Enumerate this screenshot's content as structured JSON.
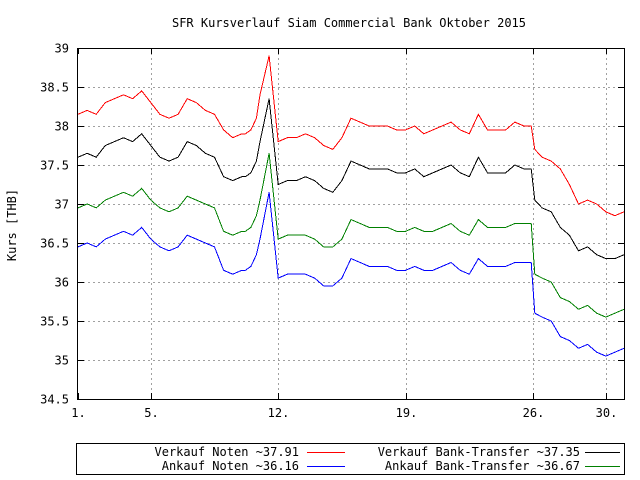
{
  "chart_data": {
    "type": "line",
    "title": "SFR Kursverlauf Siam Commercial Bank Oktober 2015",
    "xlabel": "",
    "ylabel": "Kurs [THB]",
    "xlim": [
      1,
      31
    ],
    "ylim": [
      34.5,
      39
    ],
    "grid": true,
    "legend_position": "bottom",
    "x_ticks": [
      {
        "x": 1,
        "label": "1."
      },
      {
        "x": 5,
        "label": "5."
      },
      {
        "x": 12,
        "label": "12."
      },
      {
        "x": 19,
        "label": "19."
      },
      {
        "x": 26,
        "label": "26."
      },
      {
        "x": 30,
        "label": "30."
      }
    ],
    "y_ticks": [
      {
        "y": 34.5,
        "label": "34.5"
      },
      {
        "y": 35,
        "label": "35"
      },
      {
        "y": 35.5,
        "label": "35.5"
      },
      {
        "y": 36,
        "label": "36"
      },
      {
        "y": 36.5,
        "label": "36.5"
      },
      {
        "y": 37,
        "label": "37"
      },
      {
        "y": 37.5,
        "label": "37.5"
      },
      {
        "y": 38,
        "label": "38"
      },
      {
        "y": 38.5,
        "label": "38.5"
      },
      {
        "y": 39,
        "label": "39"
      }
    ],
    "series": [
      {
        "name": "Verkauf Noten ~37.91",
        "color": "#ff0000",
        "x": [
          1.0,
          1.5,
          2.0,
          2.5,
          3.0,
          3.5,
          4.0,
          4.5,
          5.0,
          5.5,
          6.0,
          6.5,
          7.0,
          7.5,
          8.0,
          8.5,
          9.0,
          9.5,
          10.0,
          10.2,
          10.5,
          10.8,
          11.0,
          11.5,
          12.0,
          12.5,
          13.0,
          13.5,
          14.0,
          14.5,
          15.0,
          15.5,
          16.0,
          16.5,
          17.0,
          17.5,
          18.0,
          18.5,
          19.0,
          19.5,
          20.0,
          20.5,
          21.0,
          21.5,
          22.0,
          22.5,
          23.0,
          23.5,
          24.0,
          24.5,
          25.0,
          25.5,
          25.9,
          26.1,
          26.5,
          27.0,
          27.5,
          28.0,
          28.5,
          29.0,
          29.5,
          30.0,
          30.5,
          31.0
        ],
        "y": [
          38.15,
          38.2,
          38.15,
          38.3,
          38.35,
          38.4,
          38.35,
          38.45,
          38.3,
          38.15,
          38.1,
          38.15,
          38.35,
          38.3,
          38.2,
          38.15,
          37.95,
          37.85,
          37.9,
          37.9,
          37.95,
          38.1,
          38.4,
          38.9,
          37.8,
          37.85,
          37.85,
          37.9,
          37.85,
          37.75,
          37.7,
          37.85,
          38.1,
          38.05,
          38.0,
          38.0,
          38.0,
          37.95,
          37.95,
          38.0,
          37.9,
          37.95,
          38.0,
          38.05,
          37.95,
          37.9,
          38.15,
          37.95,
          37.95,
          37.95,
          38.05,
          38.0,
          38.0,
          37.7,
          37.6,
          37.55,
          37.45,
          37.25,
          37.0,
          37.05,
          37.0,
          36.9,
          36.85,
          36.9
        ]
      },
      {
        "name": "Verkauf Bank-Transfer ~37.35",
        "color": "#000000",
        "x": [
          1.0,
          1.5,
          2.0,
          2.5,
          3.0,
          3.5,
          4.0,
          4.5,
          5.0,
          5.5,
          6.0,
          6.5,
          7.0,
          7.5,
          8.0,
          8.5,
          9.0,
          9.5,
          10.0,
          10.2,
          10.5,
          10.8,
          11.0,
          11.5,
          12.0,
          12.5,
          13.0,
          13.5,
          14.0,
          14.5,
          15.0,
          15.5,
          16.0,
          16.5,
          17.0,
          17.5,
          18.0,
          18.5,
          19.0,
          19.5,
          20.0,
          20.5,
          21.0,
          21.5,
          22.0,
          22.5,
          23.0,
          23.5,
          24.0,
          24.5,
          25.0,
          25.5,
          25.9,
          26.1,
          26.5,
          27.0,
          27.5,
          28.0,
          28.5,
          29.0,
          29.5,
          30.0,
          30.5,
          31.0
        ],
        "y": [
          37.6,
          37.65,
          37.6,
          37.75,
          37.8,
          37.85,
          37.8,
          37.9,
          37.75,
          37.6,
          37.55,
          37.6,
          37.8,
          37.75,
          37.65,
          37.6,
          37.35,
          37.3,
          37.35,
          37.35,
          37.4,
          37.55,
          37.8,
          38.35,
          37.25,
          37.3,
          37.3,
          37.35,
          37.3,
          37.2,
          37.15,
          37.3,
          37.55,
          37.5,
          37.45,
          37.45,
          37.45,
          37.4,
          37.4,
          37.45,
          37.35,
          37.4,
          37.45,
          37.5,
          37.4,
          37.35,
          37.6,
          37.4,
          37.4,
          37.4,
          37.5,
          37.45,
          37.45,
          37.05,
          36.95,
          36.9,
          36.7,
          36.6,
          36.4,
          36.45,
          36.35,
          36.3,
          36.3,
          36.35
        ]
      },
      {
        "name": "Ankauf Noten ~36.16",
        "color": "#0000ff",
        "x": [
          1.0,
          1.5,
          2.0,
          2.5,
          3.0,
          3.5,
          4.0,
          4.5,
          5.0,
          5.5,
          6.0,
          6.5,
          7.0,
          7.5,
          8.0,
          8.5,
          9.0,
          9.5,
          10.0,
          10.2,
          10.5,
          10.8,
          11.0,
          11.5,
          12.0,
          12.5,
          13.0,
          13.5,
          14.0,
          14.5,
          15.0,
          15.5,
          16.0,
          16.5,
          17.0,
          17.5,
          18.0,
          18.5,
          19.0,
          19.5,
          20.0,
          20.5,
          21.0,
          21.5,
          22.0,
          22.5,
          23.0,
          23.5,
          24.0,
          24.5,
          25.0,
          25.5,
          25.9,
          26.1,
          26.5,
          27.0,
          27.5,
          28.0,
          28.5,
          29.0,
          29.5,
          30.0,
          30.5,
          31.0
        ],
        "y": [
          36.45,
          36.5,
          36.45,
          36.55,
          36.6,
          36.65,
          36.6,
          36.7,
          36.55,
          36.45,
          36.4,
          36.45,
          36.6,
          36.55,
          36.5,
          36.45,
          36.15,
          36.1,
          36.15,
          36.15,
          36.2,
          36.35,
          36.55,
          37.15,
          36.05,
          36.1,
          36.1,
          36.1,
          36.05,
          35.95,
          35.95,
          36.05,
          36.3,
          36.25,
          36.2,
          36.2,
          36.2,
          36.15,
          36.15,
          36.2,
          36.15,
          36.15,
          36.2,
          36.25,
          36.15,
          36.1,
          36.3,
          36.2,
          36.2,
          36.2,
          36.25,
          36.25,
          36.25,
          35.6,
          35.55,
          35.5,
          35.3,
          35.25,
          35.15,
          35.2,
          35.1,
          35.05,
          35.1,
          35.15
        ]
      },
      {
        "name": "Ankauf Bank-Transfer ~36.67",
        "color": "#008000",
        "x": [
          1.0,
          1.5,
          2.0,
          2.5,
          3.0,
          3.5,
          4.0,
          4.5,
          5.0,
          5.5,
          6.0,
          6.5,
          7.0,
          7.5,
          8.0,
          8.5,
          9.0,
          9.5,
          10.0,
          10.2,
          10.5,
          10.8,
          11.0,
          11.5,
          12.0,
          12.5,
          13.0,
          13.5,
          14.0,
          14.5,
          15.0,
          15.5,
          16.0,
          16.5,
          17.0,
          17.5,
          18.0,
          18.5,
          19.0,
          19.5,
          20.0,
          20.5,
          21.0,
          21.5,
          22.0,
          22.5,
          23.0,
          23.5,
          24.0,
          24.5,
          25.0,
          25.5,
          25.9,
          26.1,
          26.5,
          27.0,
          27.5,
          28.0,
          28.5,
          29.0,
          29.5,
          30.0,
          30.5,
          31.0
        ],
        "y": [
          36.95,
          37.0,
          36.95,
          37.05,
          37.1,
          37.15,
          37.1,
          37.2,
          37.05,
          36.95,
          36.9,
          36.95,
          37.1,
          37.05,
          37.0,
          36.95,
          36.65,
          36.6,
          36.65,
          36.65,
          36.7,
          36.85,
          37.05,
          37.65,
          36.55,
          36.6,
          36.6,
          36.6,
          36.55,
          36.45,
          36.45,
          36.55,
          36.8,
          36.75,
          36.7,
          36.7,
          36.7,
          36.65,
          36.65,
          36.7,
          36.65,
          36.65,
          36.7,
          36.75,
          36.65,
          36.6,
          36.8,
          36.7,
          36.7,
          36.7,
          36.75,
          36.75,
          36.75,
          36.1,
          36.05,
          36.0,
          35.8,
          35.75,
          35.65,
          35.7,
          35.6,
          35.55,
          35.6,
          35.65
        ]
      }
    ]
  }
}
